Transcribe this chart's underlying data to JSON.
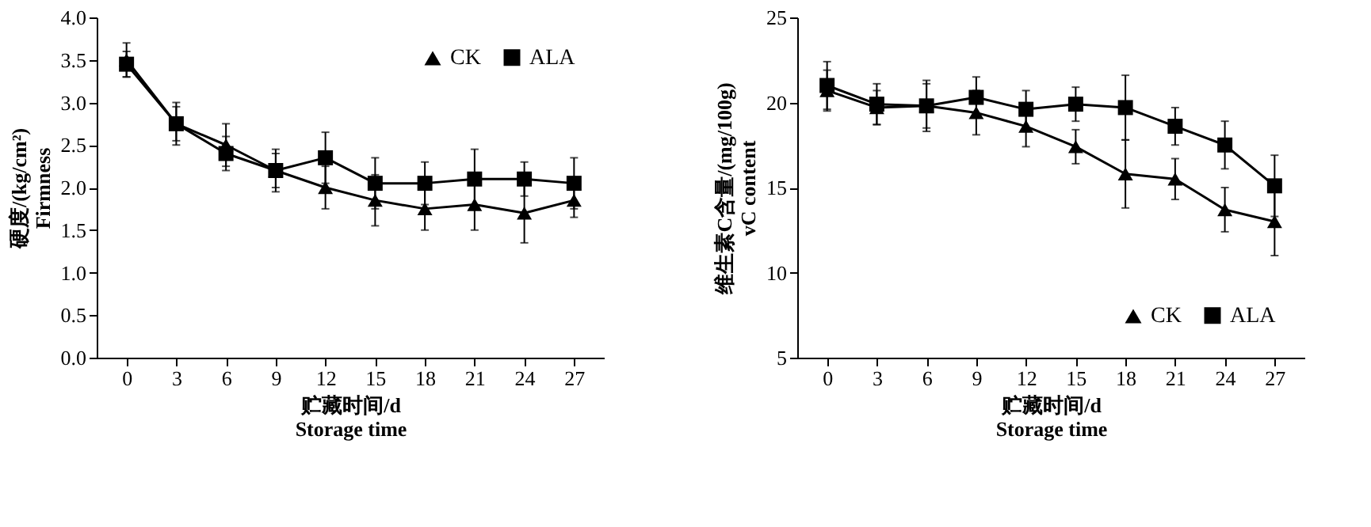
{
  "chart_data": [
    {
      "type": "line",
      "xlabel": "贮藏时间/d\nStorage time",
      "ylabel": "硬度/(kg/cm²)\nFirmness",
      "categories": [
        "0",
        "3",
        "6",
        "9",
        "12",
        "15",
        "18",
        "21",
        "24",
        "27"
      ],
      "ylim": [
        0,
        4
      ],
      "yticks": [
        {
          "value": 0,
          "label": "0.0"
        },
        {
          "value": 0.5,
          "label": "0.5"
        },
        {
          "value": 1,
          "label": "1.0"
        },
        {
          "value": 1.5,
          "label": "1.5"
        },
        {
          "value": 2,
          "label": "2.0"
        },
        {
          "value": 2.5,
          "label": "2.5"
        },
        {
          "value": 3,
          "label": "3.0"
        },
        {
          "value": 3.5,
          "label": "3.5"
        },
        {
          "value": 4,
          "label": "4.0"
        }
      ],
      "grid": false,
      "legend": "top right",
      "series": [
        {
          "name": "CK",
          "color": "#000000",
          "marker": "triangle",
          "values": [
            3.5,
            2.75,
            2.5,
            2.2,
            2.0,
            1.85,
            1.75,
            1.8,
            1.7,
            1.85
          ],
          "errors": [
            0.2,
            0.2,
            0.25,
            0.25,
            0.25,
            0.3,
            0.25,
            0.3,
            0.35,
            0.2
          ]
        },
        {
          "name": "ALA",
          "color": "#000000",
          "marker": "square",
          "values": [
            3.45,
            2.75,
            2.4,
            2.2,
            2.35,
            2.05,
            2.05,
            2.1,
            2.1,
            2.05
          ],
          "errors": [
            0.15,
            0.25,
            0.2,
            0.2,
            0.3,
            0.3,
            0.25,
            0.35,
            0.2,
            0.3
          ]
        }
      ]
    },
    {
      "type": "line",
      "xlabel": "贮藏时间/d\nStorage time",
      "ylabel": "维生素C含量/(mg/100g)\nvC content",
      "categories": [
        "0",
        "3",
        "6",
        "9",
        "12",
        "15",
        "18",
        "21",
        "24",
        "27"
      ],
      "ylim": [
        5,
        25
      ],
      "yticks": [
        5,
        10,
        15,
        20,
        25
      ],
      "grid": false,
      "legend": "bottom right",
      "series": [
        {
          "name": "CK",
          "color": "#000000",
          "marker": "triangle",
          "values": [
            20.7,
            19.7,
            19.8,
            19.4,
            18.6,
            17.4,
            15.8,
            15.5,
            13.7,
            13.0
          ],
          "errors": [
            1.2,
            1.0,
            1.3,
            1.3,
            1.2,
            1.0,
            2.0,
            1.2,
            1.3,
            2.0
          ]
        },
        {
          "name": "ALA",
          "color": "#000000",
          "marker": "square",
          "values": [
            21.0,
            19.9,
            19.8,
            20.3,
            19.6,
            19.9,
            19.7,
            18.6,
            17.5,
            15.1
          ],
          "errors": [
            1.4,
            1.2,
            1.5,
            1.2,
            1.1,
            1.0,
            1.9,
            1.1,
            1.4,
            1.8
          ]
        }
      ]
    }
  ]
}
